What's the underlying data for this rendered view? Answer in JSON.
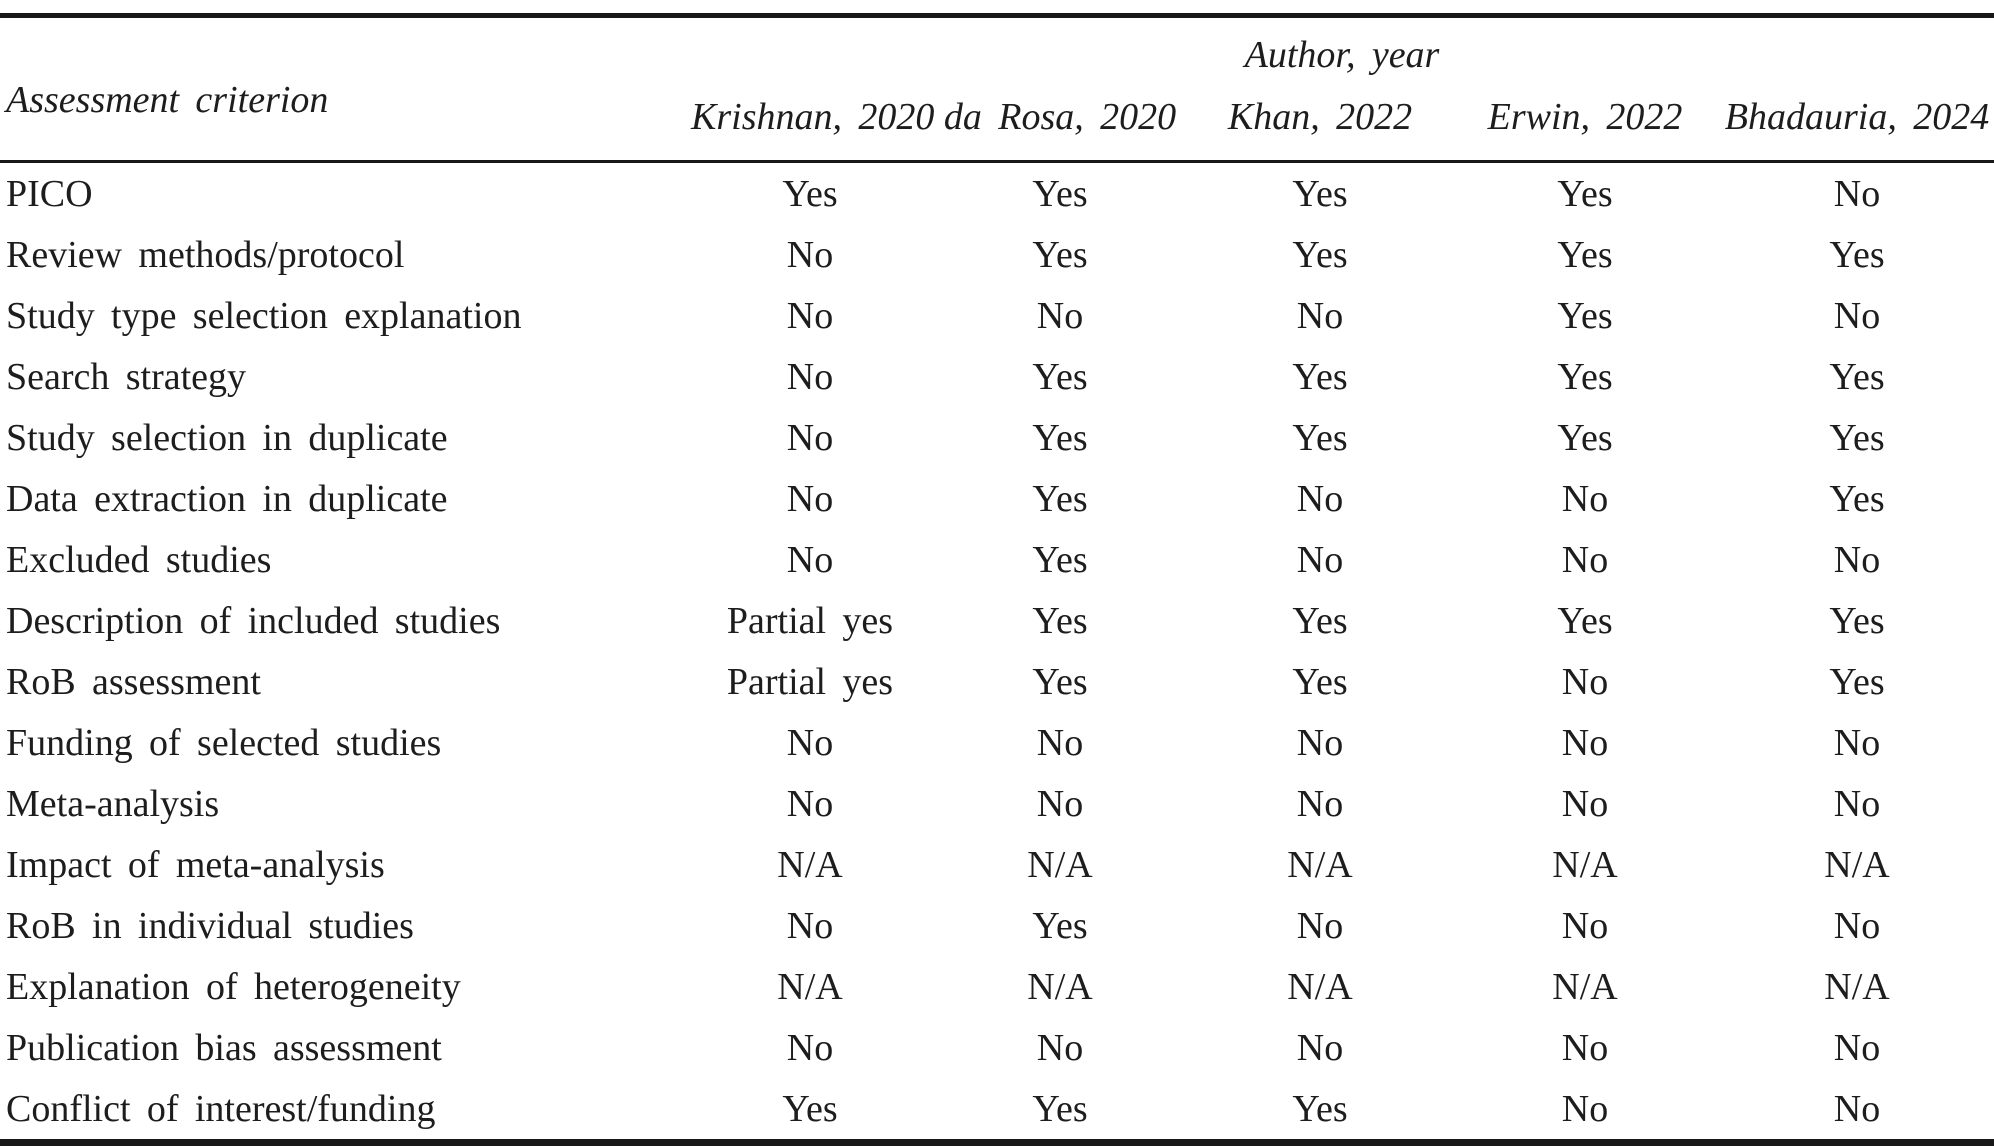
{
  "table": {
    "group_header": "Author, year",
    "criterion_header": "Assessment criterion",
    "columns": [
      "Krishnan, 2020",
      "da Rosa, 2020",
      "Khan, 2022",
      "Erwin, 2022",
      "Bhadauria, 2024"
    ],
    "rows": [
      {
        "criterion": "PICO",
        "values": [
          "Yes",
          "Yes",
          "Yes",
          "Yes",
          "No"
        ]
      },
      {
        "criterion": "Review methods/protocol",
        "values": [
          "No",
          "Yes",
          "Yes",
          "Yes",
          "Yes"
        ]
      },
      {
        "criterion": "Study type selection explanation",
        "values": [
          "No",
          "No",
          "No",
          "Yes",
          "No"
        ]
      },
      {
        "criterion": "Search strategy",
        "values": [
          "No",
          "Yes",
          "Yes",
          "Yes",
          "Yes"
        ]
      },
      {
        "criterion": "Study selection in duplicate",
        "values": [
          "No",
          "Yes",
          "Yes",
          "Yes",
          "Yes"
        ]
      },
      {
        "criterion": "Data extraction in duplicate",
        "values": [
          "No",
          "Yes",
          "No",
          "No",
          "Yes"
        ]
      },
      {
        "criterion": "Excluded studies",
        "values": [
          "No",
          "Yes",
          "No",
          "No",
          "No"
        ]
      },
      {
        "criterion": "Description of included studies",
        "values": [
          "Partial yes",
          "Yes",
          "Yes",
          "Yes",
          "Yes"
        ]
      },
      {
        "criterion": "RoB assessment",
        "values": [
          "Partial yes",
          "Yes",
          "Yes",
          "No",
          "Yes"
        ]
      },
      {
        "criterion": "Funding of selected studies",
        "values": [
          "No",
          "No",
          "No",
          "No",
          "No"
        ]
      },
      {
        "criterion": "Meta-analysis",
        "values": [
          "No",
          "No",
          "No",
          "No",
          "No"
        ]
      },
      {
        "criterion": "Impact of meta-analysis",
        "values": [
          "N/A",
          "N/A",
          "N/A",
          "N/A",
          "N/A"
        ]
      },
      {
        "criterion": "RoB in individual studies",
        "values": [
          "No",
          "Yes",
          "No",
          "No",
          "No"
        ]
      },
      {
        "criterion": "Explanation of heterogeneity",
        "values": [
          "N/A",
          "N/A",
          "N/A",
          "N/A",
          "N/A"
        ]
      },
      {
        "criterion": "Publication bias assessment",
        "values": [
          "No",
          "No",
          "No",
          "No",
          "No"
        ]
      },
      {
        "criterion": "Conflict of interest/funding",
        "values": [
          "Yes",
          "Yes",
          "Yes",
          "No",
          "No"
        ]
      }
    ],
    "colors": {
      "rule": "#181818",
      "text": "#1d1d1d",
      "background": "#ffffff"
    }
  }
}
